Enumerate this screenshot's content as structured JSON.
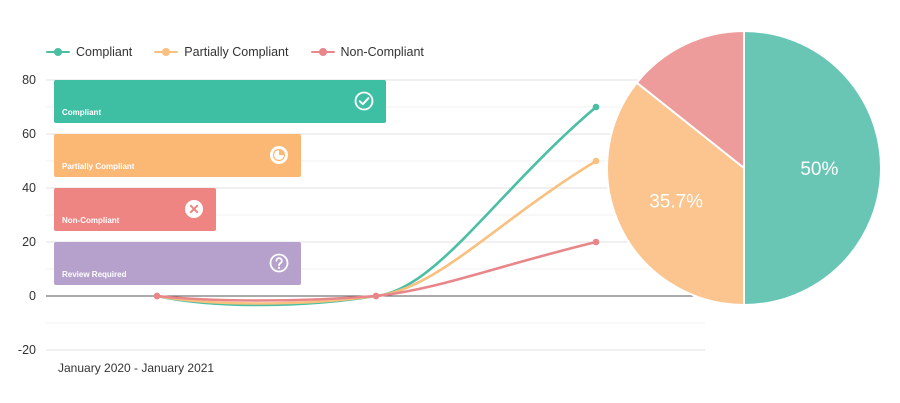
{
  "chart_data": [
    {
      "type": "line",
      "x": [
        0,
        1,
        2
      ],
      "ylim": [
        -20,
        80
      ],
      "yticks": [
        -20,
        0,
        20,
        40,
        60,
        80
      ],
      "grid": true,
      "legend": "top-left",
      "series": [
        {
          "name": "Compliant",
          "values": [
            0,
            0,
            70
          ],
          "color": "#4bbfa3"
        },
        {
          "name": "Partially Compliant",
          "values": [
            0,
            0,
            50
          ],
          "color": "#f9c07f"
        },
        {
          "name": "Non-Compliant",
          "values": [
            0,
            0,
            20
          ],
          "color": "#e8868a"
        }
      ]
    },
    {
      "type": "pie",
      "labels": [
        "Compliant",
        "Partially Compliant",
        "Non-Compliant"
      ],
      "values": [
        50,
        35.7,
        14.3
      ],
      "data_labels": [
        "50%",
        "35.7%",
        ""
      ],
      "colors": [
        "#69c6b5",
        "#fcc48e",
        "#ee9c9b"
      ]
    }
  ],
  "date_range": "January 2020 - January 2021",
  "cards": [
    {
      "label": "Compliant",
      "value": 80,
      "color": "#3ebfa4",
      "icon": "check-circle-icon"
    },
    {
      "label": "Partially Compliant",
      "value": 60,
      "color": "#fbb874",
      "icon": "pie-icon"
    },
    {
      "label": "Non-Compliant",
      "value": 40,
      "color": "#ee8583",
      "icon": "x-circle-icon"
    },
    {
      "label": "Review Required",
      "value": 60,
      "color": "#b6a1cc",
      "icon": "question-circle-icon"
    }
  ]
}
